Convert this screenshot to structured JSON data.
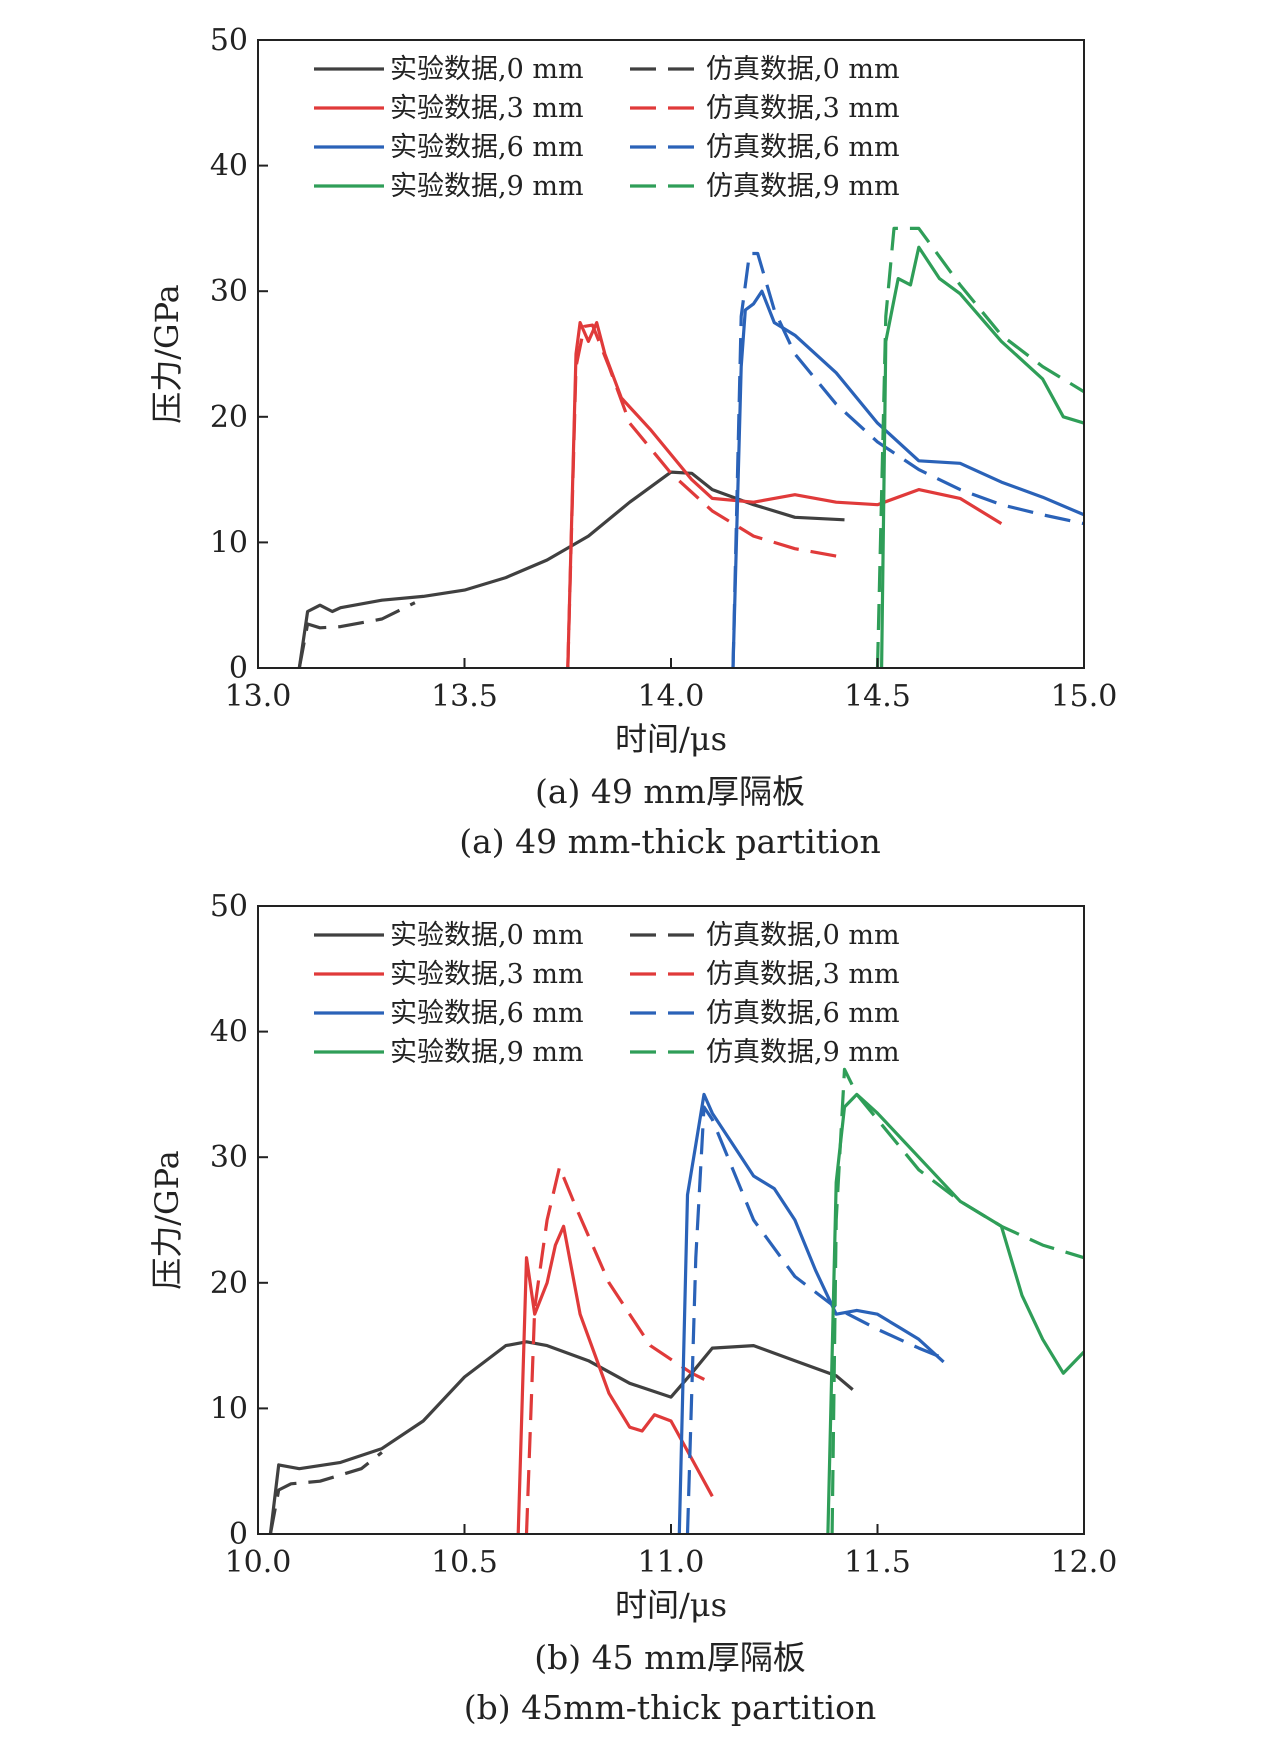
{
  "colors": {
    "0 mm": "#404040",
    "3 mm": "#e03a3a",
    "6 mm": "#2a62b8",
    "9 mm": "#2f9e58"
  },
  "chart_data": [
    {
      "type": "line",
      "caption_cn": "(a) 49 mm厚隔板",
      "caption_en": "(a) 49 mm-thick partition",
      "xlabel": "时间/μs",
      "ylabel": "压力/GPa",
      "xlim": [
        13.0,
        15.0
      ],
      "ylim": [
        0,
        50
      ],
      "xticks": [
        "13.0",
        "13.5",
        "14.0",
        "14.5",
        "15.0"
      ],
      "yticks": [
        "0",
        "10",
        "20",
        "30",
        "40",
        "50"
      ],
      "legend": "top-left",
      "series": [
        {
          "name": "实验数据,0 mm",
          "key": "0 mm",
          "dash": false,
          "x": [
            13.1,
            13.12,
            13.15,
            13.18,
            13.2,
            13.3,
            13.4,
            13.5,
            13.6,
            13.7,
            13.8,
            13.9,
            14.0,
            14.05,
            14.1,
            14.2,
            14.3,
            14.42
          ],
          "y": [
            0,
            4.5,
            5.0,
            4.5,
            4.8,
            5.4,
            5.7,
            6.2,
            7.2,
            8.6,
            10.5,
            13.2,
            15.6,
            15.5,
            14.2,
            13.0,
            12.0,
            11.8
          ]
        },
        {
          "name": "仿真数据,0 mm",
          "key": "0 mm",
          "dash": true,
          "x": [
            13.1,
            13.12,
            13.15,
            13.2,
            13.3,
            13.38
          ],
          "y": [
            0,
            3.5,
            3.2,
            3.3,
            3.9,
            5.2
          ]
        },
        {
          "name": "实验数据,3 mm",
          "key": "3 mm",
          "dash": false,
          "x": [
            13.75,
            13.77,
            13.78,
            13.8,
            13.82,
            13.84,
            13.88,
            13.95,
            14.05,
            14.1,
            14.2,
            14.3,
            14.4,
            14.5,
            14.6,
            14.7,
            14.8
          ],
          "y": [
            0,
            25,
            27.5,
            26,
            27.5,
            25,
            21.5,
            19,
            15,
            13.5,
            13.2,
            13.8,
            13.2,
            13.0,
            14.2,
            13.5,
            11.5
          ]
        },
        {
          "name": "仿真数据,3 mm",
          "key": "3 mm",
          "dash": true,
          "x": [
            13.75,
            13.77,
            13.79,
            13.81,
            13.85,
            13.9,
            14.0,
            14.1,
            14.2,
            14.3,
            14.42
          ],
          "y": [
            0,
            24,
            27.2,
            27.3,
            24,
            19.5,
            15.5,
            12.5,
            10.5,
            9.5,
            8.8
          ]
        },
        {
          "name": "实验数据,6 mm",
          "key": "6 mm",
          "dash": false,
          "x": [
            14.15,
            14.17,
            14.18,
            14.2,
            14.22,
            14.25,
            14.3,
            14.4,
            14.5,
            14.6,
            14.7,
            14.8,
            14.9,
            15.0
          ],
          "y": [
            0,
            24,
            28.5,
            29,
            30,
            27.5,
            26.5,
            23.5,
            19.5,
            16.5,
            16.3,
            14.8,
            13.6,
            12.2
          ]
        },
        {
          "name": "仿真数据,6 mm",
          "key": "6 mm",
          "dash": true,
          "x": [
            14.15,
            14.17,
            14.19,
            14.21,
            14.25,
            14.3,
            14.4,
            14.5,
            14.6,
            14.7,
            14.8,
            14.9,
            15.0
          ],
          "y": [
            0,
            28,
            33,
            33,
            28.5,
            25,
            21,
            18,
            15.8,
            14.2,
            13,
            12.2,
            11.5
          ]
        },
        {
          "name": "实验数据,9 mm",
          "key": "9 mm",
          "dash": false,
          "x": [
            14.51,
            14.52,
            14.55,
            14.58,
            14.6,
            14.65,
            14.7,
            14.8,
            14.9,
            14.95,
            15.0
          ],
          "y": [
            0,
            26,
            31,
            30.5,
            33.5,
            31,
            29.8,
            26,
            23,
            20,
            19.5
          ]
        },
        {
          "name": "仿真数据,9 mm",
          "key": "9 mm",
          "dash": true,
          "x": [
            14.5,
            14.52,
            14.54,
            14.6,
            14.7,
            14.8,
            14.9,
            15.0
          ],
          "y": [
            0,
            28,
            35,
            35,
            30.5,
            26.5,
            24,
            22
          ]
        }
      ]
    },
    {
      "type": "line",
      "caption_cn": "(b) 45 mm厚隔板",
      "caption_en": "(b) 45mm-thick partition",
      "xlabel": "时间/μs",
      "ylabel": "压力/GPa",
      "xlim": [
        10.0,
        12.0
      ],
      "ylim": [
        0,
        50
      ],
      "xticks": [
        "10.0",
        "10.5",
        "11.0",
        "11.5",
        "12.0"
      ],
      "yticks": [
        "0",
        "10",
        "20",
        "30",
        "40",
        "50"
      ],
      "legend": "top-left",
      "series": [
        {
          "name": "实验数据,0 mm",
          "key": "0 mm",
          "dash": false,
          "x": [
            10.03,
            10.05,
            10.1,
            10.2,
            10.3,
            10.4,
            10.5,
            10.6,
            10.65,
            10.7,
            10.8,
            10.9,
            11.0,
            11.05,
            11.1,
            11.2,
            11.3,
            11.4,
            11.44
          ],
          "y": [
            0,
            5.5,
            5.2,
            5.7,
            6.8,
            9.0,
            12.5,
            15.0,
            15.3,
            15.0,
            13.8,
            12.0,
            10.9,
            12.8,
            14.8,
            15.0,
            13.8,
            12.6,
            11.5
          ]
        },
        {
          "name": "仿真数据,0 mm",
          "key": "0 mm",
          "dash": true,
          "x": [
            10.03,
            10.05,
            10.08,
            10.15,
            10.25,
            10.3
          ],
          "y": [
            0,
            3.5,
            4.0,
            4.2,
            5.2,
            6.5
          ]
        },
        {
          "name": "实验数据,3 mm",
          "key": "3 mm",
          "dash": false,
          "x": [
            10.63,
            10.65,
            10.67,
            10.7,
            10.72,
            10.74,
            10.78,
            10.85,
            10.9,
            10.93,
            10.96,
            11.0,
            11.05,
            11.1
          ],
          "y": [
            0,
            22,
            17.5,
            20,
            23,
            24.5,
            17.5,
            11.2,
            8.5,
            8.2,
            9.5,
            9.0,
            6.0,
            3.0
          ]
        },
        {
          "name": "仿真数据,3 mm",
          "key": "3 mm",
          "dash": true,
          "x": [
            10.65,
            10.67,
            10.7,
            10.73,
            10.77,
            10.85,
            10.95,
            11.05,
            11.1
          ],
          "y": [
            0,
            18,
            25,
            29.2,
            26,
            20,
            15,
            12.8,
            12.0
          ]
        },
        {
          "name": "实验数据,6 mm",
          "key": "6 mm",
          "dash": false,
          "x": [
            11.02,
            11.04,
            11.06,
            11.08,
            11.1,
            11.15,
            11.2,
            11.25,
            11.3,
            11.35,
            11.4,
            11.45,
            11.5,
            11.55,
            11.6,
            11.66
          ],
          "y": [
            0,
            27,
            31,
            35,
            33.5,
            31,
            28.5,
            27.5,
            25,
            21,
            17.5,
            17.8,
            17.5,
            16.5,
            15.5,
            13.7
          ]
        },
        {
          "name": "仿真数据,6 mm",
          "key": "6 mm",
          "dash": true,
          "x": [
            11.04,
            11.06,
            11.08,
            11.1,
            11.15,
            11.2,
            11.3,
            11.4,
            11.5,
            11.6,
            11.66
          ],
          "y": [
            0,
            22,
            34,
            33,
            29,
            25,
            20.5,
            18,
            16.3,
            14.8,
            14.0
          ]
        },
        {
          "name": "实验数据,9 mm",
          "key": "9 mm",
          "dash": false,
          "x": [
            11.38,
            11.4,
            11.42,
            11.45,
            11.5,
            11.6,
            11.7,
            11.8,
            11.85,
            11.9,
            11.95,
            12.0
          ],
          "y": [
            0,
            28,
            34,
            35,
            33.5,
            30,
            26.5,
            24.5,
            19,
            15.5,
            12.8,
            14.5
          ]
        },
        {
          "name": "仿真数据,9 mm",
          "key": "9 mm",
          "dash": true,
          "x": [
            11.39,
            11.4,
            11.42,
            11.45,
            11.5,
            11.6,
            11.7,
            11.8,
            11.9,
            12.0
          ],
          "y": [
            0,
            25,
            37,
            35,
            33,
            29,
            26.5,
            24.5,
            23,
            22
          ]
        }
      ]
    }
  ]
}
